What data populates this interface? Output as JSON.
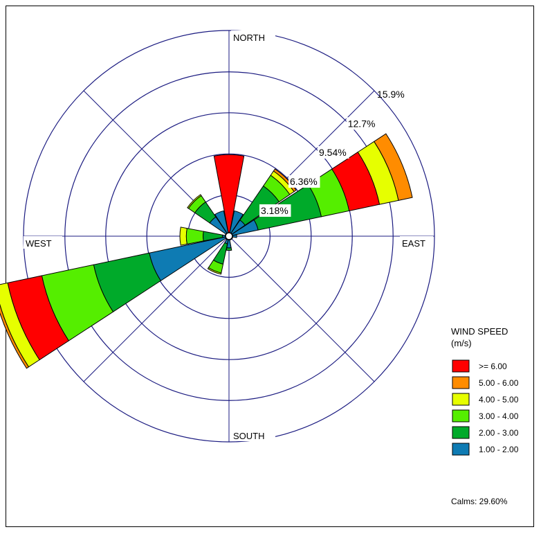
{
  "chart_data": {
    "type": "wind-rose",
    "directions": [
      "N",
      "NNE",
      "NE",
      "ENE",
      "E",
      "ESE",
      "SE",
      "SSE",
      "S",
      "SSW",
      "SW",
      "WSW",
      "W",
      "WNW",
      "NW",
      "NNW"
    ],
    "direction_labels": {
      "north": "NORTH",
      "east": "EAST",
      "south": "SOUTH",
      "west": "WEST"
    },
    "ring_values": [
      3.18,
      6.36,
      9.54,
      12.7,
      15.9
    ],
    "ring_labels": [
      "3.18%",
      "6.36%",
      "9.54%",
      "12.7%",
      "15.9%"
    ],
    "unit": "%",
    "bins": [
      {
        "label": "1.00 - 2.00",
        "color": "#0e7bb3"
      },
      {
        "label": "2.00 - 3.00",
        "color": "#00aa2a"
      },
      {
        "label": "3.00 - 4.00",
        "color": "#55ee00"
      },
      {
        "label": ">= 6.00",
        "color": "#ff0000"
      },
      {
        "label": "4.00 - 5.00",
        "color": "#e6ff00"
      },
      {
        "label": "5.00 - 6.00",
        "color": "#ff8c00"
      }
    ],
    "cumulative": {
      "N": [
        0,
        0,
        0,
        6.3,
        6.3,
        6.3
      ],
      "NNE": [
        2.0,
        2.0,
        2.0,
        2.0,
        2.0,
        2.0
      ],
      "NE": [
        1.5,
        4.7,
        5.7,
        5.7,
        6.1,
        6.3
      ],
      "ENE": [
        2.3,
        7.3,
        9.5,
        11.9,
        13.4,
        14.5
      ],
      "E": [
        0.6,
        0.6,
        0.6,
        0.6,
        0.6,
        0.6
      ],
      "ESE": [
        0.3,
        0.3,
        0.3,
        0.3,
        0.3,
        0.3
      ],
      "SE": [
        0.3,
        0.3,
        0.3,
        0.3,
        0.3,
        0.3
      ],
      "SSE": [
        0.3,
        0.3,
        0.3,
        0.3,
        0.3,
        0.3
      ],
      "S": [
        0.9,
        1.1,
        1.1,
        1.1,
        1.1,
        1.1
      ],
      "SSW": [
        0.6,
        2.2,
        2.9,
        2.9,
        3.0,
        3.0
      ],
      "SW": [
        0.3,
        0.3,
        0.3,
        0.3,
        0.3,
        0.3
      ],
      "WSW": [
        6.3,
        10.7,
        14.8,
        17.5,
        18.5,
        18.7
      ],
      "W": [
        0.5,
        2.0,
        3.3,
        3.3,
        3.8,
        3.8
      ],
      "WNW": [
        0.3,
        0.3,
        0.3,
        0.3,
        0.3,
        0.3
      ],
      "NW": [
        1.8,
        3.2,
        3.8,
        3.8,
        3.9,
        3.9
      ],
      "NNW": [
        2.0,
        2.0,
        2.0,
        2.0,
        2.0,
        2.0
      ]
    },
    "legend": {
      "title": "WIND SPEED",
      "unit": "(m/s)",
      "items": [
        {
          "label": ">= 6.00",
          "color": "#ff0000"
        },
        {
          "label": "5.00 - 6.00",
          "color": "#ff8c00"
        },
        {
          "label": "4.00 - 5.00",
          "color": "#e6ff00"
        },
        {
          "label": "3.00 - 4.00",
          "color": "#55ee00"
        },
        {
          "label": "2.00 - 3.00",
          "color": "#00aa2a"
        },
        {
          "label": "1.00 - 2.00",
          "color": "#0e7bb3"
        }
      ],
      "calms": "Calms: 29.60%"
    }
  }
}
